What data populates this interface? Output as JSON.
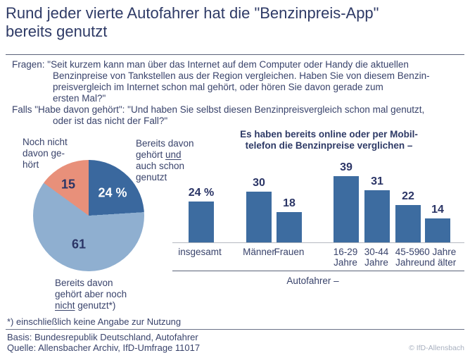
{
  "page": {
    "title": "Rund jeder vierte Autofahrer hat die \"Benzinpreis-App\" bereits genutzt",
    "title_display": "Rund jeder vierte Autofahrer hat die \"Benzinpreis-App\"\nbereits genutzt",
    "copyright": "© IfD-Allensbach"
  },
  "questions": {
    "lines": [
      {
        "t": "Fragen: \"Seit kurzem kann man über das Internet auf dem Computer oder Handy die aktuellen"
      },
      {
        "t": "Benzinpreise von Tankstellen aus der Region vergleichen. Haben Sie von diesem Benzin-"
      },
      {
        "t": "preisvergleich im Internet schon mal gehört, oder hören Sie davon gerade zum"
      },
      {
        "t": "ersten Mal?\""
      },
      {
        "t": "Falls \"Habe davon gehört\": \"Und haben Sie selbst diesen Benzinpreisvergleich schon mal genutzt,"
      },
      {
        "t": "oder ist das nicht der Fall?\""
      }
    ]
  },
  "pie_labels": {
    "not_heard": "Noch nicht\ndavon ge-\nhört",
    "heard_used": {
      "l1": "Bereits davon",
      "l2a": "gehört ",
      "l2b": "und",
      "l3": "auch schon",
      "l4": "genutzt"
    },
    "heard_not_used": {
      "l1": "Bereits davon",
      "l2": "gehört aber noch",
      "l3a": "nicht",
      "l3b": " genutzt*)"
    }
  },
  "footer": {
    "footnote": "*) einschließlich keine Angabe zur Nutzung",
    "basis": "Basis: Bundesrepublik Deutschland, Autofahrer",
    "quelle": "Quelle: Allensbacher Archiv, IfD-Umfrage 11017"
  },
  "chart_data": [
    {
      "type": "pie",
      "start_angle_deg": 0,
      "direction": "clockwise",
      "slices": [
        {
          "label": "Bereits davon gehört und auch schon genutzt",
          "value": 24,
          "display": "24 %",
          "color": "#3a689e"
        },
        {
          "label": "Bereits davon gehört aber noch nicht genutzt*)",
          "value": 61,
          "display": "61",
          "color": "#8fafd0"
        },
        {
          "label": "Noch nicht davon gehört",
          "value": 15,
          "display": "15",
          "color": "#e8907a"
        }
      ]
    },
    {
      "type": "bar",
      "title": "Es haben bereits online oder per Mobiltelefon die Benzinpreise verglichen –",
      "title_display": "Es haben bereits online oder per Mobil-\ntelefon die Benzinpreise verglichen –",
      "categories": [
        "insgesamt",
        "Männer",
        "Frauen",
        "16-29 Jahre",
        "30-44 Jahre",
        "45-59 Jahre",
        "60 Jahre und älter"
      ],
      "category_labels": [
        "insgesamt",
        "Männer",
        "Frauen",
        "16-29\nJahre",
        "30-44\nJahre",
        "45-59\nJahre",
        "60 Jahre\nund älter"
      ],
      "values": [
        24,
        30,
        18,
        39,
        31,
        22,
        14
      ],
      "value_labels": [
        "24 %",
        "30",
        "18",
        "39",
        "31",
        "22",
        "14"
      ],
      "xlabel": "Autofahrer –",
      "bar_color": "#3d6ca0",
      "ylim": [
        0,
        45
      ],
      "grid": false,
      "legend": "none"
    }
  ]
}
